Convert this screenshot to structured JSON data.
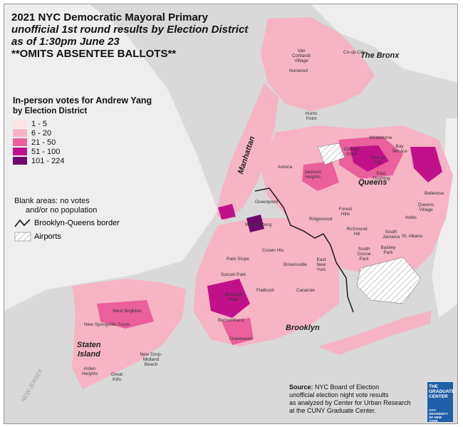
{
  "title": {
    "line1": "2021 NYC Democratic Mayoral Primary",
    "line2": "unofficial 1st round results by Election District",
    "line3": "as of 1:30pm June 23",
    "line4": "**OMITS ABSENTEE BALLOTS**"
  },
  "legend": {
    "heading": "In-person votes for Andrew Yang",
    "subheading": "by Election District",
    "classes": [
      {
        "label": "1 - 5",
        "color": "#fde4e4"
      },
      {
        "label": "6 - 20",
        "color": "#f6b4c4"
      },
      {
        "label": "21 - 50",
        "color": "#ea5f9c"
      },
      {
        "label": "51 - 100",
        "color": "#c0118a"
      },
      {
        "label": "101 - 224",
        "color": "#6e0a6e"
      }
    ],
    "blank_line1": "Blank areas: no votes",
    "blank_line2": "and/or no population",
    "border_label": "Brooklyn-Queens border",
    "airports_label": "Airports"
  },
  "boroughs": {
    "manhattan": "Manhattan",
    "bronx": "The Bronx",
    "queens": "Queens",
    "brooklyn": "Brooklyn",
    "staten_island_1": "Staten",
    "staten_island_2": "Island"
  },
  "neighborhoods": [
    {
      "name": "Van Cortlandt Village"
    },
    {
      "name": "Co-op City"
    },
    {
      "name": "Norwood"
    },
    {
      "name": "Hunts Point"
    },
    {
      "name": "Astoria"
    },
    {
      "name": "Jackson Heights"
    },
    {
      "name": "Whitestone"
    },
    {
      "name": "College Point"
    },
    {
      "name": "Murray Hill"
    },
    {
      "name": "East Flushing"
    },
    {
      "name": "Bay Terrace"
    },
    {
      "name": "Ridgewood"
    },
    {
      "name": "Forest Hills"
    },
    {
      "name": "Richmond Hill"
    },
    {
      "name": "South Jamaica"
    },
    {
      "name": "St. Albans"
    },
    {
      "name": "Hollis"
    },
    {
      "name": "Bellerose"
    },
    {
      "name": "Queens Village"
    },
    {
      "name": "Crown Hts"
    },
    {
      "name": "Park Slope"
    },
    {
      "name": "East New York"
    },
    {
      "name": "Brownsville"
    },
    {
      "name": "Canarsie"
    },
    {
      "name": "Flatbush"
    },
    {
      "name": "Borough Park"
    },
    {
      "name": "Bensonhurst"
    },
    {
      "name": "Gravesend"
    },
    {
      "name": "West Brighton"
    },
    {
      "name": "New Springville-Travis"
    },
    {
      "name": "Arden Heights"
    },
    {
      "name": "Great Kills"
    },
    {
      "name": "New Dorp-Midland Beach"
    },
    {
      "name": "Greenpoint"
    },
    {
      "name": "Williamsburg"
    },
    {
      "name": "Sunset Park"
    },
    {
      "name": "South Ozone Park"
    },
    {
      "name": "Baisley Park"
    }
  ],
  "source": {
    "label": "Source:",
    "line1": "NYC Board of Election",
    "line2": "unofficial election night vote results",
    "line3": "as analyzed by Center for Urban Research",
    "line4": "at the CUNY Graduate Center."
  },
  "logo": {
    "title": "THE GRADUATE CENTER",
    "subtitle": "CITY UNIVERSITY OF NEW YORK"
  },
  "state_label": "NEW JERSEY",
  "colors": {
    "water": "#d9d9d9",
    "land_context": "#eeeeee",
    "border": "#222222"
  }
}
